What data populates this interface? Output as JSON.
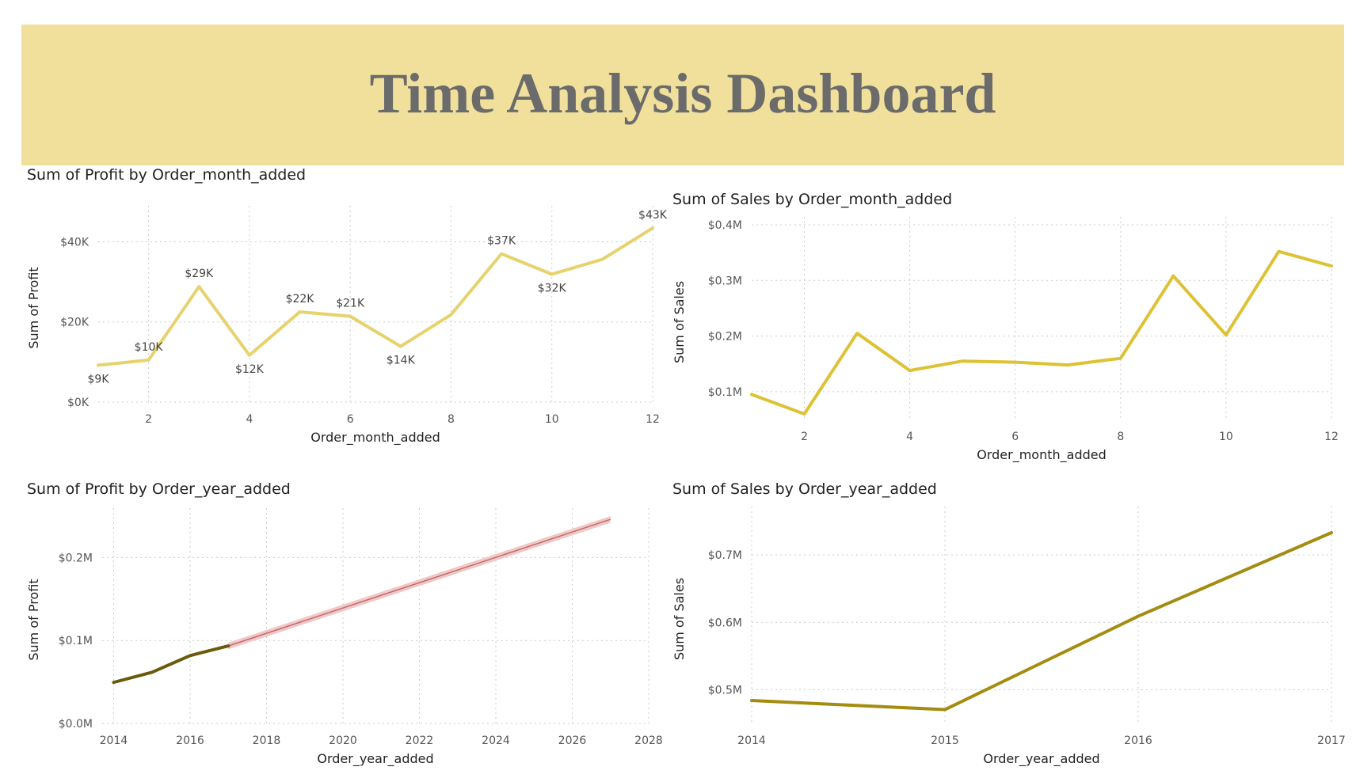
{
  "dashboard": {
    "title": "Time Analysis Dashboard"
  },
  "colors": {
    "banner": "#f0e09b",
    "title": "#6b6b6b"
  },
  "chart_data": [
    {
      "id": "c1",
      "type": "line",
      "title": "Sum of Profit by Order_month_added",
      "xlabel": "Order_month_added",
      "ylabel": "Sum of Profit",
      "x": [
        1,
        2,
        3,
        4,
        5,
        6,
        7,
        8,
        9,
        10,
        11,
        12
      ],
      "series": [
        {
          "values": [
            9200,
            10500,
            28800,
            11700,
            22500,
            21400,
            13900,
            21800,
            37000,
            31900,
            35600,
            43400
          ],
          "color": "#e6d26e"
        }
      ],
      "data_labels": [
        "$9K",
        "$10K",
        "$29K",
        "$12K",
        "$22K",
        "$21K",
        "$14K",
        null,
        "$37K",
        "$32K",
        null,
        "$43K"
      ],
      "label_side": [
        "below",
        "above",
        "above",
        "below",
        "above",
        "above",
        "below",
        null,
        "above",
        "below",
        null,
        "above"
      ],
      "xlim": [
        1,
        12
      ],
      "ylim": [
        0,
        47000
      ],
      "xticks": [
        2,
        4,
        6,
        8,
        10,
        12
      ],
      "yticks": [
        0,
        20000,
        40000
      ],
      "ytick_labels": [
        "$0K",
        "$20K",
        "$40K"
      ],
      "grid": true
    },
    {
      "id": "c2",
      "type": "line",
      "title": "Sum of Sales by Order_month_added",
      "xlabel": "Order_month_added",
      "ylabel": "Sum of Sales",
      "x": [
        1,
        2,
        3,
        4,
        5,
        6,
        7,
        8,
        9,
        10,
        11,
        12
      ],
      "series": [
        {
          "values": [
            95000,
            60000,
            205000,
            138000,
            155000,
            153000,
            148000,
            160000,
            308000,
            202000,
            352000,
            326000
          ],
          "color": "#dcc234"
        }
      ],
      "xlim": [
        1,
        12
      ],
      "ylim": [
        50000,
        400000
      ],
      "xticks": [
        2,
        4,
        6,
        8,
        10,
        12
      ],
      "yticks": [
        100000,
        200000,
        300000,
        400000
      ],
      "ytick_labels": [
        "$0.1M",
        "$0.2M",
        "$0.3M",
        "$0.4M"
      ],
      "grid": true
    },
    {
      "id": "c3",
      "type": "line",
      "title": "Sum of Profit by Order_year_added",
      "xlabel": "Order_year_added",
      "ylabel": "Sum of Profit",
      "x": [
        2014,
        2015,
        2016,
        2017
      ],
      "series": [
        {
          "values": [
            49500,
            61600,
            81800,
            93400
          ],
          "color": "#6b5a0a"
        }
      ],
      "forecast": {
        "x": [
          2017,
          2027
        ],
        "values": [
          93400,
          246000
        ],
        "band": 4000,
        "color": "#c46a6a",
        "band_color": "#f0c8c8"
      },
      "xlim": [
        2013.7,
        2028
      ],
      "ylim": [
        0,
        250000
      ],
      "xticks": [
        2014,
        2016,
        2018,
        2020,
        2022,
        2024,
        2026,
        2028
      ],
      "yticks": [
        0,
        100000,
        200000
      ],
      "ytick_labels": [
        "$0.0M",
        "$0.1M",
        "$0.2M"
      ],
      "grid": true
    },
    {
      "id": "c4",
      "type": "line",
      "title": "Sum of Sales by Order_year_added",
      "xlabel": "Order_year_added",
      "ylabel": "Sum of Sales",
      "x": [
        2014,
        2015,
        2016,
        2017
      ],
      "series": [
        {
          "values": [
            484000,
            470500,
            609000,
            733000
          ],
          "color": "#a48c10"
        }
      ],
      "xlim": [
        2014,
        2017
      ],
      "ylim": [
        450000,
        760000
      ],
      "xticks": [
        2014,
        2015,
        2016,
        2017
      ],
      "yticks": [
        500000,
        600000,
        700000
      ],
      "ytick_labels": [
        "$0.5M",
        "$0.6M",
        "$0.7M"
      ],
      "grid": true
    }
  ]
}
